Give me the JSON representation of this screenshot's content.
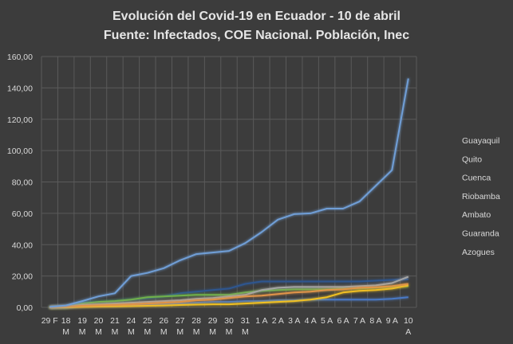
{
  "chart_data": {
    "type": "line",
    "title": "Evolución del Covid-19 en Ecuador - 10 de abril",
    "subtitle": "Fuente: Infectados, COE Nacional. Población, Inec",
    "categories": [
      [
        "29 F"
      ],
      [
        "18",
        "M"
      ],
      [
        "19",
        "M"
      ],
      [
        "20",
        "M"
      ],
      [
        "21",
        "M"
      ],
      [
        "24",
        "M"
      ],
      [
        "25",
        "M"
      ],
      [
        "26",
        "M"
      ],
      [
        "27",
        "M"
      ],
      [
        "28",
        "M"
      ],
      [
        "29",
        "M"
      ],
      [
        "30",
        "M"
      ],
      [
        "31",
        "M"
      ],
      [
        "1 A"
      ],
      [
        "2 A"
      ],
      [
        "3 A"
      ],
      [
        "4 A"
      ],
      [
        "5 A"
      ],
      [
        "6 A"
      ],
      [
        "7 A"
      ],
      [
        "8 A"
      ],
      [
        "9 A"
      ],
      [
        "10",
        "A"
      ]
    ],
    "yticks": [
      "0,00",
      "20,00",
      "40,00",
      "60,00",
      "80,00",
      "100,00",
      "120,00",
      "140,00",
      "160,00"
    ],
    "ylim": [
      0,
      160
    ],
    "grid": true,
    "legend_position": "right",
    "series": [
      {
        "name": "Guayaquil",
        "color": "#6f9ed6",
        "values": [
          0.3,
          1.2,
          4,
          7,
          9,
          20,
          22,
          25,
          30,
          34,
          35,
          36,
          41,
          48,
          56,
          59.5,
          60,
          63,
          63,
          67.5,
          77.5,
          87.5,
          146
        ]
      },
      {
        "name": "Quito",
        "color": "#e0944a",
        "values": [
          0,
          0.5,
          1,
          1.3,
          1.6,
          2,
          2.5,
          3,
          3.5,
          4.5,
          5,
          6,
          7,
          7.5,
          8.5,
          9.5,
          10,
          11,
          11.5,
          12.5,
          12.8,
          13.5,
          15
        ]
      },
      {
        "name": "Cuenca",
        "color": "#a5a5a5",
        "values": [
          0,
          0.5,
          1.5,
          2,
          2.5,
          3,
          3.5,
          4,
          4.5,
          5.5,
          6,
          7,
          8,
          11,
          12.5,
          13,
          13,
          13,
          13,
          13.5,
          14,
          15.5,
          19.5
        ]
      },
      {
        "name": "Riobamba",
        "color": "#f0c023",
        "values": [
          0,
          0,
          0.3,
          0.5,
          0.6,
          0.8,
          1,
          1.2,
          1.5,
          1.8,
          2,
          2,
          2.5,
          3,
          3.5,
          4,
          5,
          6.5,
          9.5,
          10.5,
          11,
          12,
          14
        ]
      },
      {
        "name": "Ambato",
        "color": "#4a78c4",
        "values": [
          0,
          0,
          0.5,
          1,
          1,
          1.5,
          2,
          2,
          2.5,
          3,
          3.5,
          3.5,
          4,
          4,
          4.5,
          4.5,
          5,
          5,
          5,
          5,
          5,
          5.5,
          6.5
        ]
      },
      {
        "name": "Guaranda",
        "color": "#6fb04a",
        "values": [
          0,
          0,
          2.5,
          3.5,
          4,
          5,
          6.5,
          7,
          7.5,
          8,
          8,
          8,
          9.5,
          10.5,
          11,
          11.5,
          11.5,
          11.5,
          12,
          12,
          12.5,
          13,
          13.5
        ]
      },
      {
        "name": "Azogues",
        "color": "#2f568f",
        "values": [
          0,
          0,
          3,
          3.5,
          4,
          5,
          6,
          7,
          9,
          10,
          11,
          12,
          15,
          16.5,
          16.5,
          16.5,
          16.5,
          16.5,
          16.5,
          16.5,
          17,
          17.5,
          18
        ]
      }
    ]
  }
}
